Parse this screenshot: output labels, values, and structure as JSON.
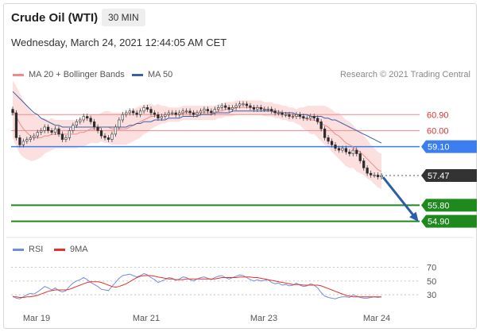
{
  "header": {
    "title": "Crude Oil (WTI)",
    "timeframe": "30 MIN",
    "datetime": "Wednesday, March 24, 2021 12:44:05 AM CET"
  },
  "legend": {
    "ma20_label": "MA 20 + Bollinger Bands",
    "ma20_color": "#f08a8a",
    "ma50_label": "MA 50",
    "ma50_color": "#3a5fa8",
    "research": "Research © 2021 Trading Central",
    "rsi_label": "RSI",
    "rsi_color": "#6f8fe0",
    "ma9_label": "9MA",
    "ma9_color": "#e8302a"
  },
  "chart_data": {
    "type": "candlestick",
    "x_ticks": [
      "Mar 19",
      "Mar 21",
      "Mar 23",
      "Mar 24"
    ],
    "ylim": [
      54.3,
      62.7
    ],
    "levels": [
      {
        "value": 60.9,
        "label": "60.90",
        "kind": "resistance",
        "color": "#f08a8a"
      },
      {
        "value": 60.0,
        "label": "60.00",
        "kind": "resistance",
        "color": "#f08a8a"
      },
      {
        "value": 59.1,
        "label": "59.10",
        "kind": "pivot",
        "color": "#3a7ef0"
      },
      {
        "value": 57.47,
        "label": "57.47",
        "kind": "last",
        "color": "#333333"
      },
      {
        "value": 55.8,
        "label": "55.80",
        "kind": "support",
        "color": "#1e8a1e"
      },
      {
        "value": 54.9,
        "label": "54.90",
        "kind": "support",
        "color": "#1e8a1e"
      }
    ],
    "close": [
      61.0,
      59.6,
      59.2,
      59.4,
      59.5,
      59.6,
      59.7,
      59.9,
      60.0,
      60.2,
      60.0,
      59.9,
      60.1,
      59.8,
      59.5,
      59.6,
      60.0,
      60.3,
      60.5,
      60.6,
      60.8,
      60.7,
      60.5,
      60.2,
      60.0,
      59.7,
      59.6,
      59.5,
      59.8,
      60.2,
      60.6,
      60.9,
      61.0,
      61.1,
      61.0,
      60.9,
      61.1,
      61.3,
      61.2,
      61.0,
      60.9,
      60.7,
      60.8,
      60.9,
      61.0,
      61.0,
      60.9,
      61.0,
      61.1,
      61.1,
      61.0,
      60.9,
      61.0,
      61.1,
      61.2,
      61.1,
      61.0,
      61.2,
      61.3,
      61.4,
      61.3,
      61.2,
      61.3,
      61.4,
      61.5,
      61.5,
      61.4,
      61.3,
      61.2,
      61.3,
      61.2,
      61.2,
      61.2,
      61.1,
      61.0,
      61.0,
      60.9,
      60.9,
      60.8,
      60.8,
      60.9,
      60.8,
      60.7,
      60.7,
      60.8,
      60.7,
      60.5,
      60.1,
      59.6,
      59.4,
      59.2,
      59.0,
      58.9,
      59.0,
      58.8,
      58.7,
      58.9,
      58.7,
      58.3,
      57.9,
      57.6,
      57.5,
      57.5,
      57.4,
      57.47
    ],
    "ma20": [
      61.2,
      60.8,
      60.4,
      60.1,
      59.9,
      59.7,
      59.6,
      59.6,
      59.6,
      59.7,
      59.7,
      59.8,
      59.8,
      59.8,
      59.8,
      59.8,
      59.8,
      59.8,
      59.8,
      59.9,
      59.9,
      60.0,
      60.1,
      60.1,
      60.1,
      60.2,
      60.2,
      60.2,
      60.1,
      60.1,
      60.1,
      60.1,
      60.1,
      60.2,
      60.3,
      60.4,
      60.5,
      60.6,
      60.7,
      60.8,
      60.8,
      60.9,
      60.9,
      60.9,
      60.9,
      60.9,
      60.9,
      60.9,
      61.0,
      61.0,
      61.0,
      61.0,
      61.0,
      61.0,
      61.0,
      61.0,
      61.0,
      61.0,
      61.1,
      61.1,
      61.2,
      61.2,
      61.2,
      61.3,
      61.3,
      61.3,
      61.3,
      61.3,
      61.3,
      61.3,
      61.3,
      61.2,
      61.2,
      61.2,
      61.1,
      61.1,
      61.0,
      61.0,
      60.9,
      60.9,
      60.8,
      60.8,
      60.7,
      60.7,
      60.6,
      60.6,
      60.5,
      60.4,
      60.3,
      60.2,
      60.0,
      59.8,
      59.7,
      59.5,
      59.3,
      59.2,
      59.1,
      58.9,
      58.8,
      58.6,
      58.4,
      58.2,
      58.0,
      57.8,
      57.7
    ],
    "ma50": [
      62.2,
      62.0,
      61.8,
      61.6,
      61.4,
      61.2,
      61.0,
      60.9,
      60.7,
      60.6,
      60.5,
      60.4,
      60.3,
      60.3,
      60.2,
      60.2,
      60.2,
      60.2,
      60.2,
      60.2,
      60.2,
      60.2,
      60.2,
      60.2,
      60.2,
      60.2,
      60.2,
      60.2,
      60.2,
      60.2,
      60.2,
      60.2,
      60.2,
      60.3,
      60.3,
      60.4,
      60.4,
      60.5,
      60.5,
      60.5,
      60.6,
      60.6,
      60.6,
      60.6,
      60.7,
      60.7,
      60.7,
      60.7,
      60.8,
      60.8,
      60.8,
      60.8,
      60.8,
      60.9,
      60.9,
      60.9,
      60.9,
      61.0,
      61.0,
      61.0,
      61.0,
      61.0,
      61.1,
      61.1,
      61.1,
      61.1,
      61.1,
      61.1,
      61.1,
      61.1,
      61.1,
      61.1,
      61.1,
      61.1,
      61.0,
      61.0,
      61.0,
      61.0,
      61.0,
      61.0,
      60.9,
      60.9,
      60.9,
      60.9,
      60.8,
      60.8,
      60.8,
      60.8,
      60.7,
      60.7,
      60.6,
      60.6,
      60.5,
      60.4,
      60.3,
      60.2,
      60.1,
      60.0,
      59.9,
      59.8,
      59.7,
      59.6,
      59.5,
      59.4,
      59.3
    ],
    "bb_width": [
      1.6,
      1.7,
      1.7,
      1.6,
      1.5,
      1.4,
      1.3,
      1.2,
      1.1,
      1.0,
      0.9,
      0.9,
      0.8,
      0.8,
      0.8,
      0.8,
      0.8,
      0.8,
      0.8,
      0.8,
      0.8,
      0.8,
      0.8,
      0.8,
      0.8,
      0.8,
      0.9,
      0.9,
      0.9,
      0.9,
      0.9,
      0.9,
      0.9,
      0.9,
      0.9,
      0.9,
      0.9,
      0.8,
      0.8,
      0.7,
      0.6,
      0.6,
      0.5,
      0.5,
      0.4,
      0.4,
      0.4,
      0.4,
      0.4,
      0.4,
      0.4,
      0.4,
      0.4,
      0.4,
      0.4,
      0.4,
      0.4,
      0.4,
      0.4,
      0.4,
      0.4,
      0.4,
      0.4,
      0.4,
      0.4,
      0.4,
      0.4,
      0.4,
      0.4,
      0.4,
      0.4,
      0.4,
      0.4,
      0.4,
      0.4,
      0.4,
      0.4,
      0.4,
      0.4,
      0.4,
      0.4,
      0.5,
      0.6,
      0.7,
      0.8,
      0.8,
      0.9,
      1.0,
      1.1,
      1.1,
      1.2,
      1.2,
      1.3,
      1.3,
      1.3,
      1.3,
      1.2,
      1.2,
      1.2,
      1.1,
      1.1,
      1.0,
      1.0,
      1.0,
      1.0
    ],
    "rsi": {
      "ylim": [
        15,
        80
      ],
      "ticks": [
        "70",
        "50",
        "30"
      ],
      "rsi": [
        28,
        25,
        24,
        27,
        30,
        32,
        31,
        34,
        38,
        42,
        40,
        37,
        40,
        36,
        34,
        36,
        42,
        47,
        50,
        52,
        55,
        52,
        48,
        45,
        42,
        38,
        37,
        36,
        42,
        48,
        54,
        58,
        59,
        60,
        58,
        56,
        58,
        61,
        59,
        55,
        52,
        48,
        50,
        52,
        55,
        54,
        51,
        53,
        56,
        55,
        52,
        50,
        53,
        55,
        56,
        54,
        52,
        55,
        57,
        58,
        55,
        53,
        55,
        57,
        59,
        58,
        55,
        52,
        50,
        52,
        50,
        51,
        52,
        48,
        46,
        47,
        44,
        45,
        43,
        44,
        47,
        44,
        42,
        43,
        46,
        44,
        40,
        33,
        28,
        26,
        25,
        24,
        26,
        27,
        27,
        26,
        30,
        28,
        26,
        25,
        25,
        26,
        27,
        26,
        27
      ],
      "ma9": [
        27,
        27,
        26,
        26,
        27,
        27,
        28,
        29,
        31,
        33,
        35,
        36,
        37,
        37,
        37,
        37,
        38,
        40,
        42,
        44,
        46,
        48,
        49,
        49,
        49,
        48,
        46,
        44,
        42,
        41,
        42,
        44,
        46,
        49,
        52,
        55,
        57,
        58,
        58,
        58,
        57,
        56,
        55,
        54,
        53,
        53,
        52,
        52,
        52,
        53,
        53,
        53,
        53,
        53,
        53,
        53,
        53,
        53,
        54,
        55,
        55,
        55,
        55,
        55,
        56,
        56,
        56,
        56,
        55,
        55,
        54,
        53,
        52,
        51,
        50,
        49,
        48,
        47,
        46,
        45,
        45,
        45,
        44,
        44,
        44,
        44,
        44,
        43,
        41,
        39,
        37,
        35,
        33,
        31,
        29,
        28,
        27,
        27,
        27,
        27,
        27,
        27,
        27,
        27,
        27
      ]
    }
  }
}
